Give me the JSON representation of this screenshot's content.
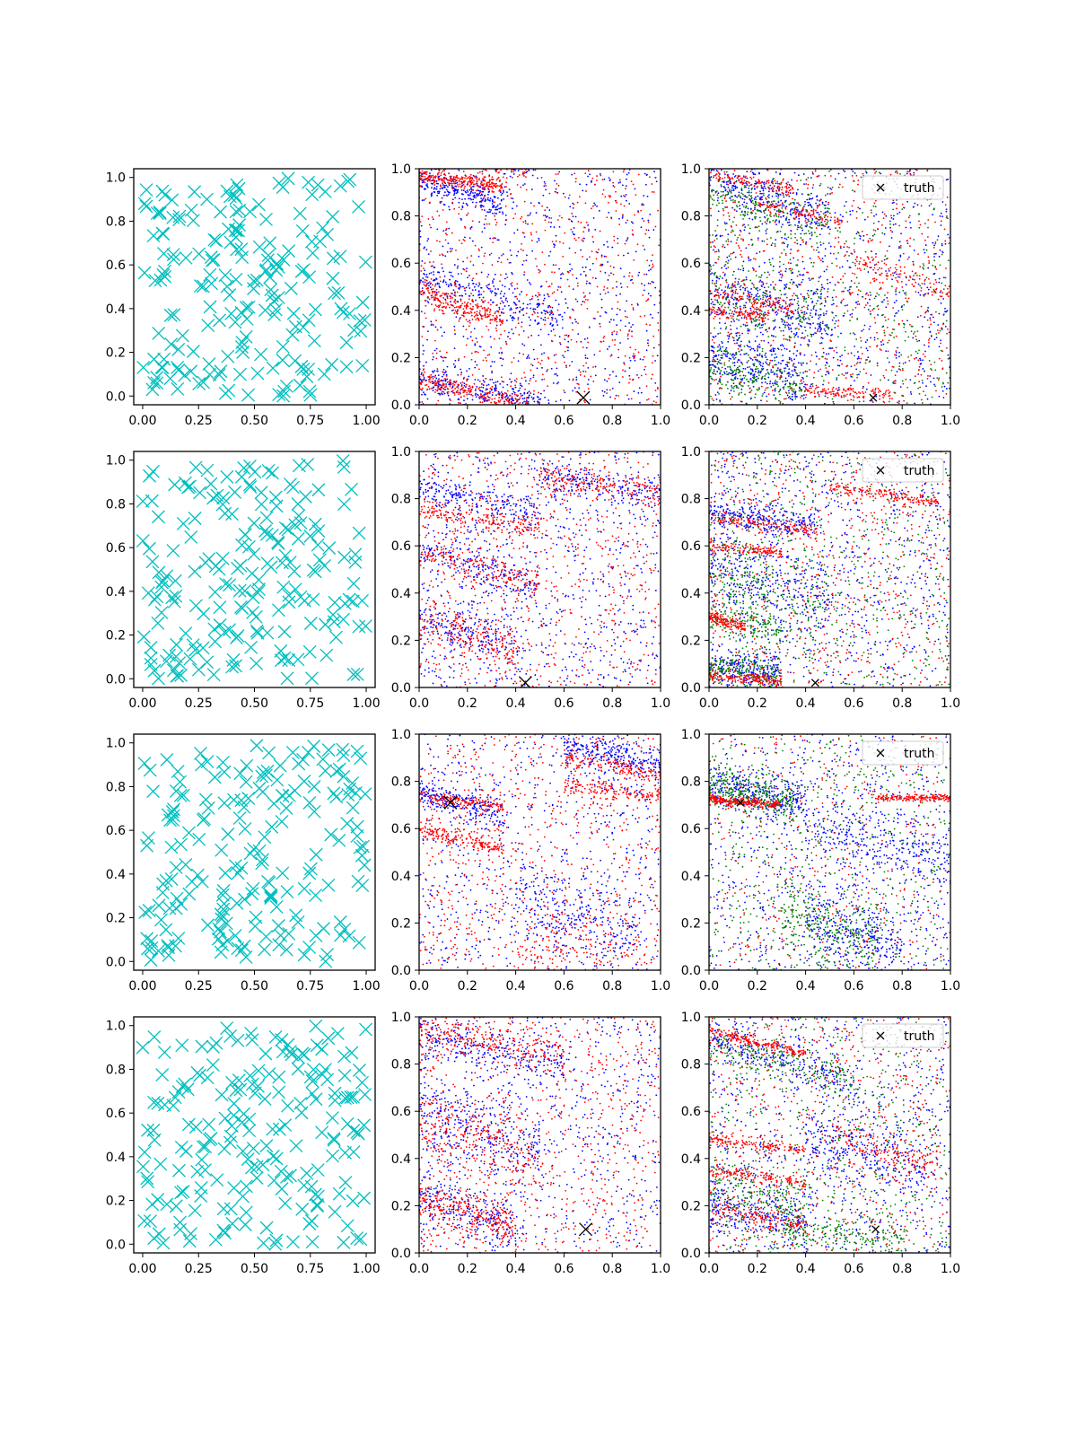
{
  "chart_data": [
    {
      "row": 0,
      "col": 0,
      "type": "scatter",
      "marker": "x",
      "color": "#00bfbf",
      "n_points": 200,
      "seed": 11,
      "xlim": [
        -0.04,
        1.04
      ],
      "ylim": [
        -0.04,
        1.04
      ],
      "xticks": [
        "0.00",
        "0.25",
        "0.50",
        "0.75",
        "1.00"
      ],
      "yticks": [
        "0.0",
        "0.2",
        "0.4",
        "0.6",
        "0.8",
        "1.0"
      ]
    },
    {
      "row": 0,
      "col": 1,
      "type": "scatter",
      "xlim": [
        0,
        1
      ],
      "ylim": [
        0,
        1
      ],
      "xticks": [
        "0.0",
        "0.2",
        "0.4",
        "0.6",
        "0.8",
        "1.0"
      ],
      "yticks": [
        "0.0",
        "0.2",
        "0.4",
        "0.6",
        "0.8",
        "1.0"
      ],
      "truth": [
        0.68,
        0.03
      ],
      "series": [
        {
          "color": "#0000ff",
          "n": 1400,
          "seed": 21,
          "bands": [
            [
              0.0,
              0.95,
              -0.28,
              0.35,
              0.03
            ],
            [
              0.0,
              0.12,
              -0.2,
              0.5,
              0.03
            ],
            [
              0.0,
              0.55,
              -0.3,
              0.6,
              0.04
            ]
          ]
        },
        {
          "color": "#ff0000",
          "n": 1400,
          "seed": 22,
          "bands": [
            [
              0.0,
              0.97,
              -0.12,
              0.35,
              0.015
            ],
            [
              0.0,
              0.48,
              -0.35,
              0.35,
              0.025
            ],
            [
              0.0,
              0.1,
              -0.22,
              0.45,
              0.025
            ]
          ]
        }
      ]
    },
    {
      "row": 0,
      "col": 2,
      "type": "scatter",
      "legend": "truth",
      "xlim": [
        0,
        1
      ],
      "ylim": [
        0,
        1
      ],
      "xticks": [
        "0.0",
        "0.2",
        "0.4",
        "0.6",
        "0.8",
        "1.0"
      ],
      "yticks": [
        "0.0",
        "0.2",
        "0.4",
        "0.6",
        "0.8",
        "1.0"
      ],
      "truth": [
        0.68,
        0.03
      ],
      "series": [
        {
          "color": "#0000ff",
          "n": 1600,
          "seed": 31,
          "bands": [
            [
              0.0,
              0.95,
              -0.3,
              0.5,
              0.05
            ],
            [
              0.0,
              0.5,
              -0.3,
              0.5,
              0.08
            ],
            [
              0.0,
              0.2,
              -0.2,
              0.4,
              0.06
            ]
          ]
        },
        {
          "color": "#008000",
          "n": 1000,
          "seed": 32,
          "bands": [
            [
              0.0,
              0.9,
              -0.3,
              0.5,
              0.05
            ],
            [
              0.0,
              0.5,
              -0.3,
              0.5,
              0.08
            ],
            [
              0.0,
              0.15,
              -0.2,
              0.4,
              0.05
            ]
          ]
        },
        {
          "color": "#ff0000",
          "n": 1300,
          "seed": 33,
          "bands": [
            [
              0.0,
              0.98,
              -0.2,
              0.35,
              0.012
            ],
            [
              0.2,
              0.86,
              -0.25,
              0.35,
              0.015
            ],
            [
              0.0,
              0.48,
              -0.2,
              0.35,
              0.015
            ],
            [
              0.0,
              0.4,
              -0.1,
              0.25,
              0.012
            ],
            [
              0.4,
              0.06,
              -0.05,
              0.35,
              0.012
            ],
            [
              0.6,
              0.6,
              -0.3,
              0.4,
              0.03
            ]
          ]
        }
      ]
    },
    {
      "row": 1,
      "col": 0,
      "type": "scatter",
      "marker": "x",
      "color": "#00bfbf",
      "n_points": 200,
      "seed": 12,
      "xlim": [
        -0.04,
        1.04
      ],
      "ylim": [
        -0.04,
        1.04
      ],
      "xticks": [
        "0.00",
        "0.25",
        "0.50",
        "0.75",
        "1.00"
      ],
      "yticks": [
        "0.0",
        "0.2",
        "0.4",
        "0.6",
        "0.8",
        "1.0"
      ]
    },
    {
      "row": 1,
      "col": 1,
      "type": "scatter",
      "xlim": [
        0,
        1
      ],
      "ylim": [
        0,
        1
      ],
      "xticks": [
        "0.0",
        "0.2",
        "0.4",
        "0.6",
        "0.8",
        "1.0"
      ],
      "yticks": [
        "0.0",
        "0.2",
        "0.4",
        "0.6",
        "0.8",
        "1.0"
      ],
      "truth": [
        0.44,
        0.02
      ],
      "series": [
        {
          "color": "#0000ff",
          "n": 1500,
          "seed": 41,
          "bands": [
            [
              0.0,
              0.85,
              -0.22,
              0.5,
              0.03
            ],
            [
              0.0,
              0.58,
              -0.28,
              0.5,
              0.04
            ],
            [
              0.0,
              0.3,
              -0.3,
              0.4,
              0.05
            ],
            [
              0.5,
              0.9,
              -0.15,
              0.5,
              0.03
            ]
          ]
        },
        {
          "color": "#ff0000",
          "n": 1500,
          "seed": 42,
          "bands": [
            [
              0.0,
              0.75,
              -0.15,
              0.5,
              0.025
            ],
            [
              0.0,
              0.58,
              -0.28,
              0.5,
              0.03
            ],
            [
              0.0,
              0.28,
              -0.3,
              0.4,
              0.05
            ],
            [
              0.5,
              0.9,
              -0.15,
              0.5,
              0.03
            ]
          ]
        }
      ]
    },
    {
      "row": 1,
      "col": 2,
      "type": "scatter",
      "legend": "truth",
      "xlim": [
        0,
        1
      ],
      "ylim": [
        0,
        1
      ],
      "xticks": [
        "0.0",
        "0.2",
        "0.4",
        "0.6",
        "0.8",
        "1.0"
      ],
      "yticks": [
        "0.0",
        "0.2",
        "0.4",
        "0.6",
        "0.8",
        "1.0"
      ],
      "truth": [
        0.44,
        0.02
      ],
      "series": [
        {
          "color": "#0000ff",
          "n": 1500,
          "seed": 51,
          "bands": [
            [
              0.0,
              0.75,
              -0.15,
              0.45,
              0.03
            ],
            [
              0.0,
              0.1,
              -0.15,
              0.3,
              0.04
            ],
            [
              0.0,
              0.5,
              -0.3,
              0.5,
              0.08
            ]
          ]
        },
        {
          "color": "#008000",
          "n": 1100,
          "seed": 52,
          "bands": [
            [
              0.0,
              0.3,
              -0.25,
              0.3,
              0.05
            ],
            [
              0.0,
              0.08,
              -0.1,
              0.3,
              0.03
            ],
            [
              0.0,
              0.5,
              -0.3,
              0.5,
              0.08
            ]
          ]
        },
        {
          "color": "#ff0000",
          "n": 1400,
          "seed": 53,
          "bands": [
            [
              0.0,
              0.05,
              -0.08,
              0.3,
              0.01
            ],
            [
              0.0,
              0.72,
              -0.12,
              0.45,
              0.012
            ],
            [
              0.0,
              0.6,
              -0.1,
              0.3,
              0.012
            ],
            [
              0.0,
              0.3,
              -0.3,
              0.15,
              0.015
            ],
            [
              0.5,
              0.85,
              -0.15,
              0.45,
              0.012
            ]
          ]
        }
      ]
    },
    {
      "row": 2,
      "col": 0,
      "type": "scatter",
      "marker": "x",
      "color": "#00bfbf",
      "n_points": 200,
      "seed": 13,
      "xlim": [
        -0.04,
        1.04
      ],
      "ylim": [
        -0.04,
        1.04
      ],
      "xticks": [
        "0.00",
        "0.25",
        "0.50",
        "0.75",
        "1.00"
      ],
      "yticks": [
        "0.0",
        "0.2",
        "0.4",
        "0.6",
        "0.8",
        "1.0"
      ]
    },
    {
      "row": 2,
      "col": 1,
      "type": "scatter",
      "xlim": [
        0,
        1
      ],
      "ylim": [
        0,
        1
      ],
      "xticks": [
        "0.0",
        "0.2",
        "0.4",
        "0.6",
        "0.8",
        "1.0"
      ],
      "yticks": [
        "0.0",
        "0.2",
        "0.4",
        "0.6",
        "0.8",
        "1.0"
      ],
      "truth": [
        0.13,
        0.71
      ],
      "series": [
        {
          "color": "#0000ff",
          "n": 1400,
          "seed": 61,
          "bands": [
            [
              0.0,
              0.75,
              -0.25,
              0.35,
              0.03
            ],
            [
              0.4,
              0.3,
              -0.3,
              0.5,
              0.08
            ],
            [
              0.6,
              0.95,
              -0.2,
              0.4,
              0.03
            ]
          ]
        },
        {
          "color": "#ff0000",
          "n": 1500,
          "seed": 62,
          "bands": [
            [
              0.0,
              0.74,
              -0.15,
              0.35,
              0.015
            ],
            [
              0.0,
              0.6,
              -0.25,
              0.35,
              0.02
            ],
            [
              0.6,
              0.9,
              -0.2,
              0.4,
              0.02
            ],
            [
              0.6,
              0.78,
              -0.1,
              0.4,
              0.02
            ],
            [
              0.4,
              0.1,
              -0.1,
              0.6,
              0.08
            ]
          ]
        }
      ]
    },
    {
      "row": 2,
      "col": 2,
      "type": "scatter",
      "legend": "truth",
      "xlim": [
        0,
        1
      ],
      "ylim": [
        0,
        1
      ],
      "xticks": [
        "0.0",
        "0.2",
        "0.4",
        "0.6",
        "0.8",
        "1.0"
      ],
      "yticks": [
        "0.0",
        "0.2",
        "0.4",
        "0.6",
        "0.8",
        "1.0"
      ],
      "truth": [
        0.13,
        0.71
      ],
      "series": [
        {
          "color": "#0000ff",
          "n": 1600,
          "seed": 71,
          "bands": [
            [
              0.0,
              0.8,
              -0.25,
              0.4,
              0.05
            ],
            [
              0.4,
              0.25,
              -0.45,
              0.4,
              0.06
            ],
            [
              0.4,
              0.6,
              -0.2,
              0.6,
              0.06
            ]
          ]
        },
        {
          "color": "#008000",
          "n": 1100,
          "seed": 72,
          "bands": [
            [
              0.0,
              0.78,
              -0.2,
              0.35,
              0.04
            ],
            [
              0.3,
              0.25,
              -0.3,
              0.4,
              0.07
            ]
          ]
        },
        {
          "color": "#ff0000",
          "n": 800,
          "seed": 73,
          "bands": [
            [
              0.0,
              0.72,
              -0.06,
              0.3,
              0.01
            ],
            [
              0.7,
              0.73,
              0.0,
              0.35,
              0.008
            ]
          ]
        }
      ]
    },
    {
      "row": 3,
      "col": 0,
      "type": "scatter",
      "marker": "x",
      "color": "#00bfbf",
      "n_points": 200,
      "seed": 14,
      "xlim": [
        -0.04,
        1.04
      ],
      "ylim": [
        -0.04,
        1.04
      ],
      "xticks": [
        "0.00",
        "0.25",
        "0.50",
        "0.75",
        "1.00"
      ],
      "yticks": [
        "0.0",
        "0.2",
        "0.4",
        "0.6",
        "0.8",
        "1.0"
      ]
    },
    {
      "row": 3,
      "col": 1,
      "type": "scatter",
      "xlim": [
        0,
        1
      ],
      "ylim": [
        0,
        1
      ],
      "xticks": [
        "0.0",
        "0.2",
        "0.4",
        "0.6",
        "0.8",
        "1.0"
      ],
      "yticks": [
        "0.0",
        "0.2",
        "0.4",
        "0.6",
        "0.8",
        "1.0"
      ],
      "truth": [
        0.69,
        0.1
      ],
      "series": [
        {
          "color": "#0000ff",
          "n": 1400,
          "seed": 81,
          "bands": [
            [
              0.0,
              0.25,
              -0.35,
              0.4,
              0.05
            ],
            [
              0.0,
              0.92,
              -0.2,
              0.6,
              0.04
            ],
            [
              0.0,
              0.6,
              -0.3,
              0.5,
              0.08
            ]
          ]
        },
        {
          "color": "#ff0000",
          "n": 1500,
          "seed": 82,
          "bands": [
            [
              0.0,
              0.22,
              -0.25,
              0.4,
              0.04
            ],
            [
              0.0,
              0.95,
              -0.18,
              0.6,
              0.04
            ],
            [
              0.0,
              0.55,
              -0.3,
              0.5,
              0.08
            ]
          ]
        }
      ]
    },
    {
      "row": 3,
      "col": 2,
      "type": "scatter",
      "legend": "truth",
      "xlim": [
        0,
        1
      ],
      "ylim": [
        0,
        1
      ],
      "xticks": [
        "0.0",
        "0.2",
        "0.4",
        "0.6",
        "0.8",
        "1.0"
      ],
      "yticks": [
        "0.0",
        "0.2",
        "0.4",
        "0.6",
        "0.8",
        "1.0"
      ],
      "truth": [
        0.69,
        0.1
      ],
      "series": [
        {
          "color": "#0000ff",
          "n": 1500,
          "seed": 91,
          "bands": [
            [
              0.0,
              0.9,
              -0.3,
              0.6,
              0.04
            ],
            [
              0.4,
              0.5,
              -0.3,
              0.5,
              0.08
            ],
            [
              0.0,
              0.2,
              -0.2,
              0.4,
              0.06
            ]
          ]
        },
        {
          "color": "#008000",
          "n": 1100,
          "seed": 92,
          "bands": [
            [
              0.0,
              0.88,
              -0.25,
              0.6,
              0.04
            ],
            [
              0.0,
              0.3,
              -0.3,
              0.4,
              0.06
            ],
            [
              0.3,
              0.1,
              -0.1,
              0.5,
              0.04
            ]
          ]
        },
        {
          "color": "#ff0000",
          "n": 1400,
          "seed": 93,
          "bands": [
            [
              0.0,
              0.94,
              -0.25,
              0.4,
              0.01
            ],
            [
              0.0,
              0.35,
              -0.15,
              0.4,
              0.015
            ],
            [
              0.0,
              0.48,
              -0.12,
              0.4,
              0.012
            ],
            [
              0.0,
              0.18,
              -0.15,
              0.4,
              0.02
            ],
            [
              0.5,
              0.5,
              -0.3,
              0.45,
              0.03
            ]
          ]
        }
      ]
    }
  ]
}
